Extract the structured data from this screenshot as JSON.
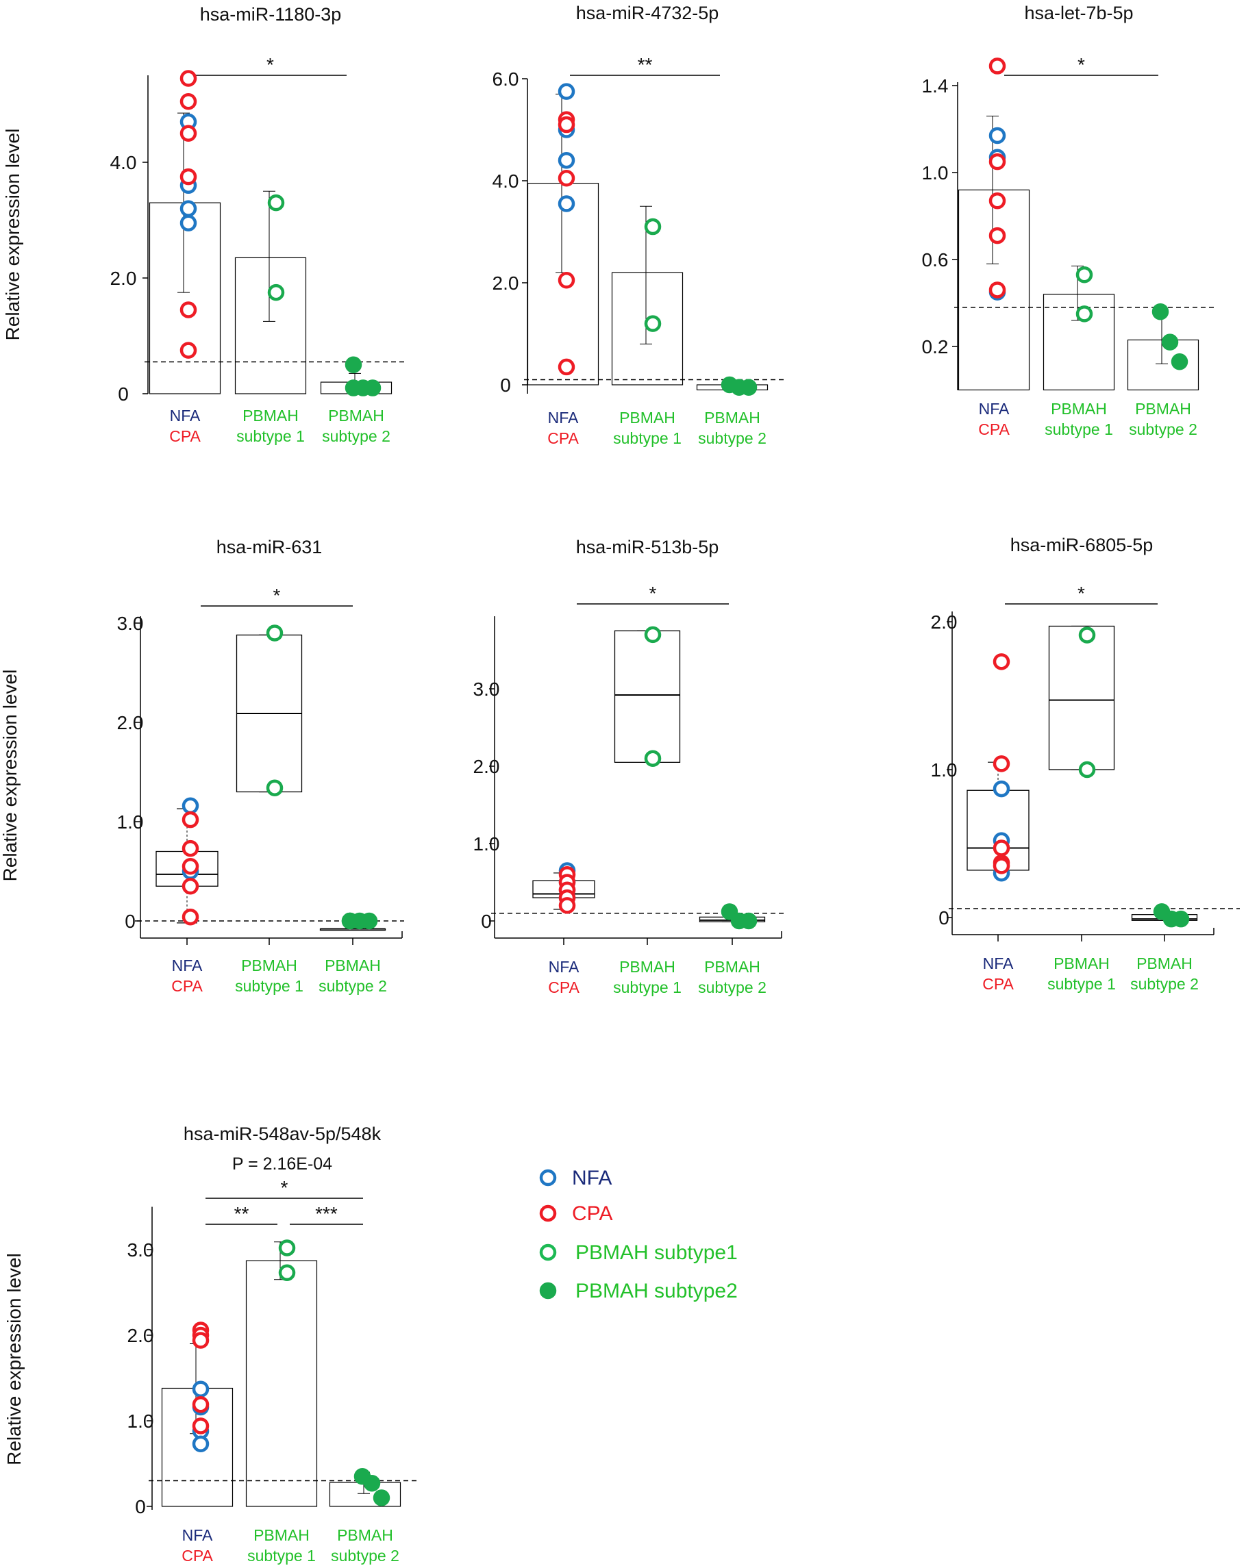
{
  "figure": {
    "y_axis_label": "Relative expression level",
    "group_labels": {
      "nfa": "NFA",
      "cpa": "CPA",
      "pbmah1_line1": "PBMAH",
      "pbmah1_line2": "subtype 1",
      "pbmah2_line1": "PBMAH",
      "pbmah2_line2": "subtype 2"
    },
    "legend": [
      {
        "label": "NFA",
        "marker": "open-circle",
        "marker_color": "#1f77c4",
        "text_color": "#1a2a7a"
      },
      {
        "label": "CPA",
        "marker": "open-circle",
        "marker_color": "#ee1c25",
        "text_color": "#ee1c25"
      },
      {
        "label": "PBMAH subtype1",
        "marker": "open-circle",
        "marker_color": "#1db954",
        "text_color": "#22c02a"
      },
      {
        "label": "PBMAH subtype2",
        "marker": "filled-circle",
        "marker_color": "#1aaa4e",
        "text_color": "#22c02a"
      }
    ],
    "colors": {
      "nfa": "#1f77c4",
      "cpa": "#ee1c25",
      "green_marker": "#1aaa4e",
      "nfa_text": "#1a2a7a",
      "green_text": "#22c02a"
    }
  },
  "chart_data": [
    {
      "title": "hsa-miR-1180-3p",
      "type": "bar",
      "ylim": [
        0,
        5.5
      ],
      "yticks": [
        0,
        2.0,
        4.0
      ],
      "ytick_labels": [
        "0",
        "2.0",
        "4.0"
      ],
      "ylabel": "Relative expression level",
      "baseline": 0.55,
      "categories": [
        "NFA/CPA",
        "PBMAH subtype 1",
        "PBMAH subtype 2"
      ],
      "bars": [
        {
          "mean": 3.3,
          "err_low": 1.75,
          "err_high": 4.85
        },
        {
          "mean": 2.35,
          "err_low": 1.25,
          "err_high": 3.5
        },
        {
          "mean": 0.2,
          "err_low": 0.0,
          "err_high": 0.35
        }
      ],
      "points": {
        "nfa": [
          4.7,
          3.6,
          3.2,
          2.95
        ],
        "cpa": [
          5.45,
          5.05,
          4.5,
          3.75,
          1.45,
          0.75
        ],
        "pbmah1": [
          3.3,
          1.75
        ],
        "pbmah2": [
          0.1,
          0.1,
          0.1,
          0.5
        ]
      },
      "significance": [
        {
          "from": 0,
          "to": 2,
          "label": "*"
        }
      ]
    },
    {
      "title": "hsa-miR-4732-5p",
      "type": "bar",
      "ylim": [
        0,
        6.0
      ],
      "yticks": [
        0,
        2.0,
        4.0,
        6.0
      ],
      "ytick_labels": [
        "0",
        "2.0",
        "4.0",
        "6.0"
      ],
      "ylabel": "Relative expression level",
      "baseline": 0.1,
      "categories": [
        "NFA/CPA",
        "PBMAH subtype 1",
        "PBMAH subtype 2"
      ],
      "bars": [
        {
          "mean": 3.95,
          "err_low": 2.2,
          "err_high": 5.7
        },
        {
          "mean": 2.2,
          "err_low": 0.8,
          "err_high": 3.5
        },
        {
          "mean": -0.1,
          "err_low": -0.1,
          "err_high": -0.05
        }
      ],
      "points": {
        "nfa": [
          5.75,
          5.0,
          4.4,
          3.55
        ],
        "cpa": [
          5.2,
          5.1,
          4.05,
          2.05,
          0.35
        ],
        "pbmah1": [
          3.1,
          1.2
        ],
        "pbmah2": [
          0.0,
          -0.05,
          -0.05
        ]
      },
      "significance": [
        {
          "from": 0,
          "to": 2,
          "label": "**"
        }
      ]
    },
    {
      "title": "hsa-let-7b-5p",
      "type": "bar",
      "ylim": [
        0,
        1.4
      ],
      "yticks": [
        0.2,
        0.6,
        1.0,
        1.4
      ],
      "ytick_labels": [
        "0.2",
        "0.6",
        "1.0",
        "1.4"
      ],
      "ylabel": "Relative expression level",
      "baseline": 0.38,
      "categories": [
        "NFA/CPA",
        "PBMAH subtype 1",
        "PBMAH subtype 2"
      ],
      "bars": [
        {
          "mean": 0.92,
          "err_low": 0.58,
          "err_high": 1.26
        },
        {
          "mean": 0.44,
          "err_low": 0.32,
          "err_high": 0.57
        },
        {
          "mean": 0.23,
          "err_low": 0.12,
          "err_high": 0.35
        }
      ],
      "points": {
        "nfa": [
          1.17,
          1.07,
          0.45
        ],
        "cpa": [
          1.49,
          1.05,
          0.87,
          0.71,
          0.46
        ],
        "pbmah1": [
          0.53,
          0.35
        ],
        "pbmah2": [
          0.36,
          0.22,
          0.13
        ]
      },
      "significance": [
        {
          "from": 0,
          "to": 2,
          "label": "*"
        }
      ]
    },
    {
      "title": "hsa-miR-631",
      "type": "box",
      "ylim": [
        -0.2,
        3.0
      ],
      "yticks": [
        0,
        1.0,
        2.0,
        3.0
      ],
      "ytick_labels": [
        "0",
        "1.0",
        "2.0",
        "3.0"
      ],
      "ylabel": "Relative expression level",
      "baseline": 0.0,
      "categories": [
        "NFA/CPA",
        "PBMAH subtype 1",
        "PBMAH subtype 2"
      ],
      "boxes": [
        {
          "q1": 0.35,
          "median": 0.47,
          "q3": 0.7,
          "whisker_low": -0.02,
          "whisker_high": 1.13
        },
        {
          "q1": 1.3,
          "median": 2.09,
          "q3": 2.88,
          "whisker_low": 1.3,
          "whisker_high": 2.88
        },
        {
          "q1": -0.08,
          "median": -0.08,
          "q3": -0.08,
          "whisker_low": -0.08,
          "whisker_high": -0.08
        }
      ],
      "points": {
        "nfa": [
          1.16,
          0.5
        ],
        "cpa": [
          1.02,
          0.73,
          0.55,
          0.35,
          0.04
        ],
        "pbmah1": [
          2.9,
          1.34
        ],
        "pbmah2": [
          0.0,
          0.0,
          0.0,
          0.0
        ]
      },
      "significance": [
        {
          "from": 0,
          "to": 2,
          "label": "*"
        }
      ]
    },
    {
      "title": "hsa-miR-513b-5p",
      "type": "box",
      "ylim": [
        -0.1,
        3.9
      ],
      "yticks": [
        0,
        1.0,
        2.0,
        3.0
      ],
      "ytick_labels": [
        "0",
        "1.0",
        "2.0",
        "3.0"
      ],
      "ylabel": "Relative expression level",
      "baseline": 0.1,
      "categories": [
        "NFA/CPA",
        "PBMAH subtype 1",
        "PBMAH subtype 2"
      ],
      "boxes": [
        {
          "q1": 0.3,
          "median": 0.35,
          "q3": 0.52,
          "whisker_low": 0.15,
          "whisker_high": 0.62
        },
        {
          "q1": 2.05,
          "median": 2.92,
          "q3": 3.75,
          "whisker_low": 2.05,
          "whisker_high": 3.75
        },
        {
          "q1": -0.01,
          "median": 0.01,
          "q3": 0.05,
          "whisker_low": -0.01,
          "whisker_high": 0.08
        }
      ],
      "points": {
        "nfa": [
          0.65,
          0.5,
          0.4,
          0.3
        ],
        "cpa": [
          0.6,
          0.5,
          0.4,
          0.3,
          0.2
        ],
        "pbmah1": [
          3.7,
          2.1
        ],
        "pbmah2": [
          0.12,
          0.0,
          0.0
        ]
      },
      "significance": [
        {
          "from": 0,
          "to": 2,
          "label": "*"
        }
      ]
    },
    {
      "title": "hsa-miR-6805-5p",
      "type": "box",
      "ylim": [
        -0.1,
        2.0
      ],
      "yticks": [
        0,
        1.0,
        2.0
      ],
      "ytick_labels": [
        "0",
        "1.0",
        "2.0"
      ],
      "ylabel": "Relative expression level",
      "baseline": 0.06,
      "categories": [
        "NFA/CPA",
        "PBMAH subtype 1",
        "PBMAH subtype 2"
      ],
      "boxes": [
        {
          "q1": 0.32,
          "median": 0.47,
          "q3": 0.86,
          "whisker_low": 0.32,
          "whisker_high": 1.05
        },
        {
          "q1": 1.0,
          "median": 1.47,
          "q3": 1.97,
          "whisker_low": 1.0,
          "whisker_high": 1.97
        },
        {
          "q1": -0.02,
          "median": -0.01,
          "q3": 0.02,
          "whisker_low": -0.02,
          "whisker_high": 0.03
        }
      ],
      "points": {
        "nfa": [
          0.87,
          0.52,
          0.3
        ],
        "cpa": [
          1.73,
          1.04,
          0.47,
          0.37,
          0.35
        ],
        "pbmah1": [
          1.91,
          1.0
        ],
        "pbmah2": [
          0.04,
          -0.01,
          -0.01
        ]
      },
      "significance": [
        {
          "from": 0,
          "to": 2,
          "label": "*"
        }
      ]
    },
    {
      "title": "hsa-miR-548av-5p/548k",
      "type": "bar",
      "ylim": [
        0,
        3.5
      ],
      "yticks": [
        0,
        1.0,
        2.0,
        3.0
      ],
      "ytick_labels": [
        "0",
        "1.0",
        "2.0",
        "3.0"
      ],
      "ylabel": "Relative expression level",
      "baseline": 0.3,
      "subtitle": "P = 2.16E-04",
      "categories": [
        "NFA/CPA",
        "PBMAH subtype 1",
        "PBMAH subtype 2"
      ],
      "bars": [
        {
          "mean": 1.38,
          "err_low": 0.85,
          "err_high": 1.9
        },
        {
          "mean": 2.87,
          "err_low": 2.65,
          "err_high": 3.09
        },
        {
          "mean": 0.28,
          "err_low": 0.15,
          "err_high": 0.4
        }
      ],
      "points": {
        "nfa": [
          1.37,
          1.16,
          0.88,
          0.73
        ],
        "cpa": [
          2.06,
          2.0,
          1.94,
          1.19,
          0.94
        ],
        "pbmah1": [
          3.02,
          2.73
        ],
        "pbmah2": [
          0.35,
          0.27,
          0.1
        ]
      },
      "significance": [
        {
          "from": 0,
          "to": 2,
          "label": "*"
        },
        {
          "from": 0,
          "to": 1,
          "label": "**"
        },
        {
          "from": 1,
          "to": 2,
          "label": "***"
        }
      ]
    }
  ]
}
